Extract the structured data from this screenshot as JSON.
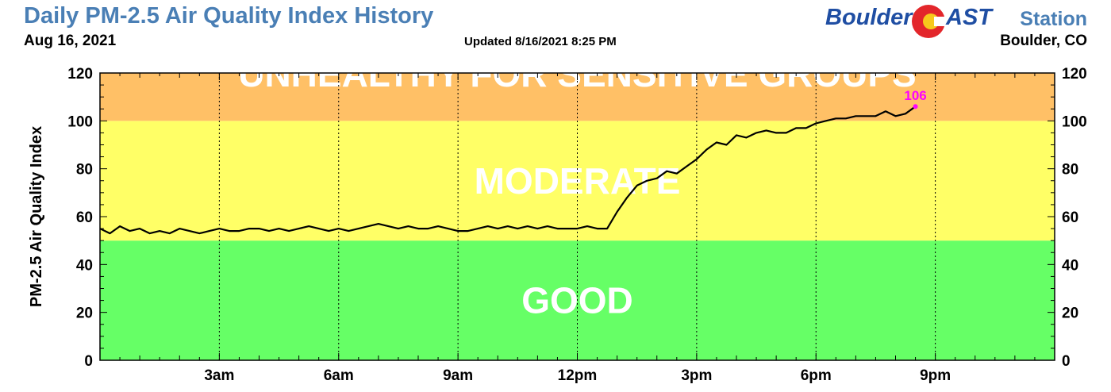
{
  "header": {
    "title": "Daily PM-2.5 Air Quality Index History",
    "date": "Aug 16, 2021",
    "updated": "Updated 8/16/2021 8:25 PM",
    "logo_part1": "Boulder",
    "logo_part2": "AST",
    "station_label": "Station",
    "location": "Boulder, CO"
  },
  "colors": {
    "title": "#4a7fb5",
    "logo_blue": "#1f4ea3",
    "logo_red": "#e3262b",
    "logo_yellow": "#f7c91c",
    "good": "#66ff66",
    "moderate": "#ffff66",
    "usg": "#ffc066",
    "line": "#000000",
    "last_point": "#ff00ff"
  },
  "chart_data": {
    "type": "line",
    "ylabel": "PM-2.5 Air Quality Index",
    "xlabel": "",
    "ylim": [
      0,
      120
    ],
    "xlim_hours": [
      0,
      24
    ],
    "y_ticks": [
      0,
      20,
      40,
      60,
      80,
      100,
      120
    ],
    "x_ticks": [
      {
        "hour": 3,
        "label": "3am"
      },
      {
        "hour": 6,
        "label": "6am"
      },
      {
        "hour": 9,
        "label": "9am"
      },
      {
        "hour": 12,
        "label": "12pm"
      },
      {
        "hour": 15,
        "label": "3pm"
      },
      {
        "hour": 18,
        "label": "6pm"
      },
      {
        "hour": 21,
        "label": "9pm"
      }
    ],
    "grid": "vertical dotted lines at labeled hours",
    "bands": [
      {
        "label": "GOOD",
        "from": 0,
        "to": 50,
        "color": "#66ff66"
      },
      {
        "label": "MODERATE",
        "from": 50,
        "to": 100,
        "color": "#ffff66"
      },
      {
        "label": "UNHEALTHY FOR SENSITIVE GROUPS",
        "from": 100,
        "to": 150,
        "color": "#ffc066"
      }
    ],
    "last_value_label": "106",
    "series": [
      {
        "x": [
          0,
          0.25,
          0.5,
          0.75,
          1,
          1.25,
          1.5,
          1.75,
          2,
          2.25,
          2.5,
          2.75,
          3,
          3.25,
          3.5,
          3.75,
          4,
          4.25,
          4.5,
          4.75,
          5,
          5.25,
          5.5,
          5.75,
          6,
          6.25,
          6.5,
          6.75,
          7,
          7.25,
          7.5,
          7.75,
          8,
          8.25,
          8.5,
          8.75,
          9,
          9.25,
          9.5,
          9.75,
          10,
          10.25,
          10.5,
          10.75,
          11,
          11.25,
          11.5,
          11.75,
          12,
          12.25,
          12.5,
          12.75,
          13,
          13.25,
          13.5,
          13.75,
          14,
          14.25,
          14.5,
          14.75,
          15,
          15.25,
          15.5,
          15.75,
          16,
          16.25,
          16.5,
          16.75,
          17,
          17.25,
          17.5,
          17.75,
          18,
          18.25,
          18.5,
          18.75,
          19,
          19.25,
          19.5,
          19.75,
          20,
          20.25,
          20.5
        ],
        "y": [
          55,
          53,
          56,
          54,
          55,
          53,
          54,
          53,
          55,
          54,
          53,
          54,
          55,
          54,
          54,
          55,
          55,
          54,
          55,
          54,
          55,
          56,
          55,
          54,
          55,
          54,
          55,
          56,
          57,
          56,
          55,
          56,
          55,
          55,
          56,
          55,
          54,
          54,
          55,
          56,
          55,
          56,
          55,
          56,
          55,
          56,
          55,
          55,
          55,
          56,
          55,
          55,
          62,
          68,
          73,
          75,
          76,
          79,
          78,
          81,
          84,
          88,
          91,
          90,
          94,
          93,
          95,
          96,
          95,
          95,
          97,
          97,
          99,
          100,
          101,
          101,
          102,
          102,
          102,
          104,
          102,
          103,
          106
        ]
      }
    ]
  }
}
